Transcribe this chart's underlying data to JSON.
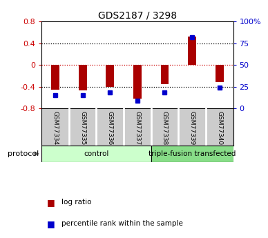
{
  "title": "GDS2187 / 3298",
  "samples": [
    "GSM77334",
    "GSM77335",
    "GSM77336",
    "GSM77337",
    "GSM77338",
    "GSM77339",
    "GSM77340"
  ],
  "log_ratio": [
    -0.46,
    -0.47,
    -0.4,
    -0.62,
    -0.35,
    0.52,
    -0.32
  ],
  "percentile": [
    15,
    15,
    18,
    9,
    18,
    82,
    24
  ],
  "ylim": [
    -0.8,
    0.8
  ],
  "right_ylim": [
    0,
    100
  ],
  "right_yticks": [
    0,
    25,
    50,
    75,
    100
  ],
  "right_yticklabels": [
    "0",
    "25",
    "50",
    "75",
    "100%"
  ],
  "left_yticks": [
    -0.8,
    -0.4,
    0.0,
    0.4,
    0.8
  ],
  "left_yticklabels": [
    "-0.8",
    "-0.4",
    "0",
    "0.4",
    "0.8"
  ],
  "bar_color": "#aa0000",
  "dot_color": "#0000cc",
  "hline_colors": {
    "neg0.4": "black",
    "zero": "#cc0000",
    "pos0.4": "black"
  },
  "sample_box_color": "#cccccc",
  "sample_box_border": "#999999",
  "protocol_groups": [
    {
      "label": "control",
      "start": 0,
      "end": 4,
      "color": "#ccffcc"
    },
    {
      "label": "triple-fusion transfected",
      "start": 4,
      "end": 7,
      "color": "#88dd88"
    }
  ],
  "protocol_label": "protocol",
  "arrow_color": "#888888",
  "legend_items": [
    {
      "color": "#aa0000",
      "label": "log ratio"
    },
    {
      "color": "#0000cc",
      "label": "percentile rank within the sample"
    }
  ],
  "background_color": "#ffffff"
}
